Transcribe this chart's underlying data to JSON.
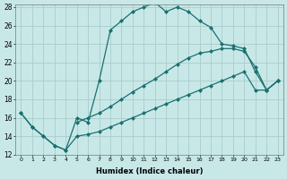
{
  "xlabel": "Humidex (Indice chaleur)",
  "bg_color": "#c8e8e8",
  "line_color": "#1a7070",
  "grid_color": "#b8d8d8",
  "xmin": 0,
  "xmax": 23,
  "ymin": 12,
  "ymax": 28,
  "line1_x": [
    0,
    1,
    2,
    3,
    4,
    5,
    6,
    7,
    8,
    9,
    10,
    11,
    12,
    13,
    14,
    15,
    16,
    17,
    18,
    19,
    20,
    21,
    22,
    23
  ],
  "line1_y": [
    16.5,
    15.0,
    14.0,
    13.0,
    12.5,
    16.0,
    15.5,
    20.0,
    25.5,
    26.5,
    27.5,
    28.0,
    28.5,
    27.5,
    28.0,
    27.5,
    26.5,
    25.8,
    24.0,
    23.8,
    23.5,
    21.0,
    19.0,
    20.0
  ],
  "line2_x": [
    5,
    6,
    7,
    8,
    9,
    10,
    11,
    12,
    13,
    14,
    15,
    16,
    17,
    18,
    19,
    20,
    21,
    22,
    23
  ],
  "line2_y": [
    15.5,
    16.0,
    16.5,
    17.2,
    18.0,
    18.8,
    19.5,
    20.2,
    21.0,
    21.8,
    22.5,
    23.0,
    23.2,
    23.5,
    23.5,
    23.2,
    21.5,
    19.0,
    20.0
  ],
  "line3_x": [
    0,
    1,
    2,
    3,
    4,
    5,
    6,
    7,
    8,
    9,
    10,
    11,
    12,
    13,
    14,
    15,
    16,
    17,
    18,
    19,
    20,
    21,
    22,
    23
  ],
  "line3_y": [
    16.5,
    15.0,
    14.0,
    13.0,
    12.5,
    14.0,
    14.2,
    14.5,
    15.0,
    15.5,
    16.0,
    16.5,
    17.0,
    17.5,
    18.0,
    18.5,
    19.0,
    19.5,
    20.0,
    20.5,
    21.0,
    19.0,
    19.0,
    20.0
  ]
}
